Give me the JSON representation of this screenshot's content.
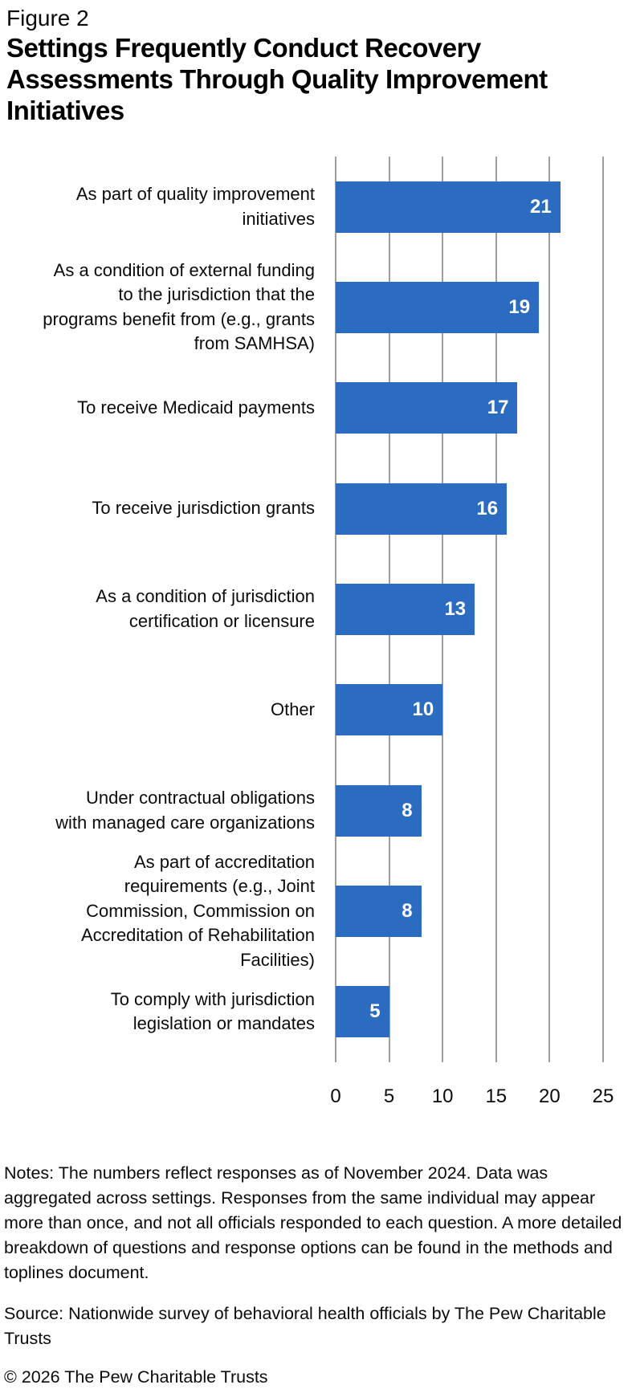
{
  "figure_label": "Figure 2",
  "title": "Settings Frequently Conduct Recovery Assessments Through Quality Improvement Initiatives",
  "chart_data": {
    "type": "bar",
    "orientation": "horizontal",
    "title": "Settings Frequently Conduct Recovery Assessments Through Quality Improvement Initiatives",
    "categories": [
      "As part of quality improvement initiatives",
      "As a condition of external funding to the jurisdiction that the programs benefit from (e.g., grants from SAMHSA)",
      "To receive Medicaid payments",
      "To receive jurisdiction grants",
      "As a condition of jurisdiction certification or licensure",
      "Other",
      "Under contractual obligations with managed care organizations",
      "As part of accreditation requirements (e.g., Joint Commission, Commission on Accreditation of Rehabilitation Facilities)",
      "To comply with jurisdiction legislation or mandates"
    ],
    "category_lines": [
      [
        "As part of quality improvement",
        "initiatives"
      ],
      [
        "As a condition of external funding",
        "to the jurisdiction that the",
        "programs benefit from (e.g., grants",
        "from SAMHSA)"
      ],
      [
        "To receive Medicaid payments"
      ],
      [
        "To receive jurisdiction grants"
      ],
      [
        "As a condition of jurisdiction",
        "certification or licensure"
      ],
      [
        "Other"
      ],
      [
        "Under contractual obligations",
        "with managed care organizations"
      ],
      [
        "As part of accreditation",
        "requirements (e.g., Joint",
        "Commission, Commission on",
        "Accreditation of Rehabilitation",
        "Facilities)"
      ],
      [
        "To comply with jurisdiction",
        "legislation or mandates"
      ]
    ],
    "values": [
      21,
      19,
      17,
      16,
      13,
      10,
      8,
      8,
      5
    ],
    "xlabel": "",
    "ylabel": "",
    "xlim": [
      0,
      25
    ],
    "xticks": [
      0,
      5,
      10,
      15,
      20,
      25
    ],
    "grid": "vertical-gridlines-on",
    "legend": "none",
    "bar_color": "#2b6cc1",
    "gridline_color": "#9e9e9e",
    "value_label_color": "#ffffff"
  },
  "notes": "Notes: The numbers reflect responses as of November 2024. Data was aggregated across settings. Responses from the same individual may appear more than once, and not all officials responded to each question. A more detailed breakdown of questions and response options can be found in the methods and toplines document.",
  "source": "Source: Nationwide survey of behavioral health officials by The Pew Charitable Trusts",
  "copyright": "© 2026 The Pew Charitable Trusts"
}
